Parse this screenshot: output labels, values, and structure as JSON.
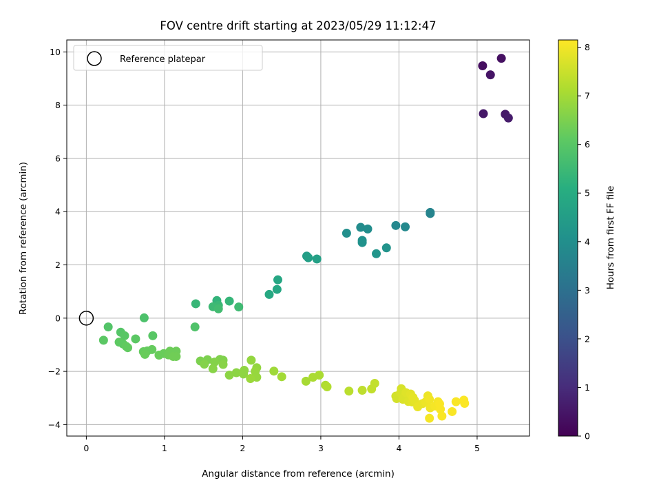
{
  "chart_data": {
    "type": "scatter",
    "title": "FOV centre drift starting at 2023/05/29 11:12:47",
    "xlabel": "Angular distance from reference (arcmin)",
    "ylabel": "Rotation from reference (arcmin)",
    "xlim": [
      -0.25,
      5.67
    ],
    "ylim": [
      -4.43,
      10.45
    ],
    "xticks": [
      0,
      1,
      2,
      3,
      4,
      5
    ],
    "yticks": [
      -4,
      -2,
      0,
      2,
      4,
      6,
      8,
      10
    ],
    "grid": true,
    "legend": {
      "position": "top-left",
      "entries": [
        "Reference platepar"
      ]
    },
    "reference_point": {
      "x": 0,
      "y": 0,
      "label": "Reference platepar"
    },
    "colorbar": {
      "label": "Hours from first FF file",
      "colormap": "viridis",
      "range": [
        0,
        8.15
      ],
      "ticks": [
        0,
        1,
        2,
        3,
        4,
        5,
        6,
        7,
        8
      ]
    },
    "series": [
      {
        "points": [
          {
            "x": 5.07,
            "y": 9.48,
            "h": 0.3
          },
          {
            "x": 5.31,
            "y": 9.76,
            "h": 0.35
          },
          {
            "x": 5.17,
            "y": 9.14,
            "h": 0.45
          },
          {
            "x": 5.08,
            "y": 7.68,
            "h": 0.5
          },
          {
            "x": 5.36,
            "y": 7.66,
            "h": 0.55
          },
          {
            "x": 5.4,
            "y": 7.52,
            "h": 0.6
          },
          {
            "x": 4.4,
            "y": 3.97,
            "h": 3.6
          },
          {
            "x": 4.4,
            "y": 3.93,
            "h": 3.65
          },
          {
            "x": 3.96,
            "y": 3.48,
            "h": 3.75
          },
          {
            "x": 4.08,
            "y": 3.43,
            "h": 3.8
          },
          {
            "x": 3.51,
            "y": 3.41,
            "h": 3.9
          },
          {
            "x": 3.6,
            "y": 3.35,
            "h": 3.95
          },
          {
            "x": 3.33,
            "y": 3.19,
            "h": 4.0
          },
          {
            "x": 3.53,
            "y": 2.92,
            "h": 4.05
          },
          {
            "x": 3.53,
            "y": 2.84,
            "h": 4.1
          },
          {
            "x": 3.84,
            "y": 2.64,
            "h": 4.15
          },
          {
            "x": 3.71,
            "y": 2.42,
            "h": 4.2
          },
          {
            "x": 2.82,
            "y": 2.33,
            "h": 4.5
          },
          {
            "x": 2.84,
            "y": 2.27,
            "h": 4.55
          },
          {
            "x": 2.95,
            "y": 2.22,
            "h": 4.6
          },
          {
            "x": 2.45,
            "y": 1.44,
            "h": 4.8
          },
          {
            "x": 2.44,
            "y": 1.08,
            "h": 4.85
          },
          {
            "x": 2.34,
            "y": 0.89,
            "h": 4.9
          },
          {
            "x": 1.67,
            "y": 0.66,
            "h": 5.3
          },
          {
            "x": 1.83,
            "y": 0.64,
            "h": 5.35
          },
          {
            "x": 1.4,
            "y": 0.54,
            "h": 5.4
          },
          {
            "x": 1.69,
            "y": 0.48,
            "h": 5.45
          },
          {
            "x": 1.62,
            "y": 0.43,
            "h": 5.5
          },
          {
            "x": 1.95,
            "y": 0.42,
            "h": 5.55
          },
          {
            "x": 1.69,
            "y": 0.35,
            "h": 5.6
          },
          {
            "x": 0.74,
            "y": 0.01,
            "h": 5.8
          },
          {
            "x": 1.39,
            "y": -0.33,
            "h": 5.85
          },
          {
            "x": 0.28,
            "y": -0.33,
            "h": 5.9
          },
          {
            "x": 0.44,
            "y": -0.53,
            "h": 5.95
          },
          {
            "x": 0.49,
            "y": -0.66,
            "h": 6.0
          },
          {
            "x": 0.85,
            "y": -0.66,
            "h": 6.0
          },
          {
            "x": 0.63,
            "y": -0.78,
            "h": 6.05
          },
          {
            "x": 0.22,
            "y": -0.83,
            "h": 6.05
          },
          {
            "x": 0.42,
            "y": -0.9,
            "h": 6.1
          },
          {
            "x": 0.47,
            "y": -0.97,
            "h": 6.1
          },
          {
            "x": 0.51,
            "y": -1.06,
            "h": 6.15
          },
          {
            "x": 0.53,
            "y": -1.11,
            "h": 6.15
          },
          {
            "x": 0.84,
            "y": -1.18,
            "h": 6.2
          },
          {
            "x": 0.78,
            "y": -1.23,
            "h": 6.2
          },
          {
            "x": 0.73,
            "y": -1.26,
            "h": 6.2
          },
          {
            "x": 0.75,
            "y": -1.36,
            "h": 6.25
          },
          {
            "x": 0.93,
            "y": -1.39,
            "h": 6.25
          },
          {
            "x": 0.99,
            "y": -1.33,
            "h": 6.25
          },
          {
            "x": 1.07,
            "y": -1.24,
            "h": 6.3
          },
          {
            "x": 1.15,
            "y": -1.24,
            "h": 6.3
          },
          {
            "x": 1.05,
            "y": -1.38,
            "h": 6.3
          },
          {
            "x": 1.11,
            "y": -1.44,
            "h": 6.35
          },
          {
            "x": 1.15,
            "y": -1.44,
            "h": 6.35
          },
          {
            "x": 1.46,
            "y": -1.61,
            "h": 6.5
          },
          {
            "x": 1.55,
            "y": -1.56,
            "h": 6.5
          },
          {
            "x": 1.71,
            "y": -1.55,
            "h": 6.55
          },
          {
            "x": 1.75,
            "y": -1.58,
            "h": 6.55
          },
          {
            "x": 1.51,
            "y": -1.73,
            "h": 6.6
          },
          {
            "x": 1.64,
            "y": -1.65,
            "h": 6.6
          },
          {
            "x": 1.75,
            "y": -1.74,
            "h": 6.65
          },
          {
            "x": 1.62,
            "y": -1.9,
            "h": 6.65
          },
          {
            "x": 1.83,
            "y": -2.14,
            "h": 6.7
          },
          {
            "x": 1.92,
            "y": -2.05,
            "h": 6.7
          },
          {
            "x": 2.02,
            "y": -1.96,
            "h": 6.75
          },
          {
            "x": 2.01,
            "y": -2.1,
            "h": 6.75
          },
          {
            "x": 2.11,
            "y": -1.58,
            "h": 6.8
          },
          {
            "x": 2.18,
            "y": -1.86,
            "h": 6.8
          },
          {
            "x": 2.16,
            "y": -2.0,
            "h": 6.85
          },
          {
            "x": 2.18,
            "y": -2.22,
            "h": 6.85
          },
          {
            "x": 2.1,
            "y": -2.27,
            "h": 6.9
          },
          {
            "x": 2.4,
            "y": -1.99,
            "h": 6.95
          },
          {
            "x": 2.5,
            "y": -2.2,
            "h": 7.0
          },
          {
            "x": 2.81,
            "y": -2.37,
            "h": 7.05
          },
          {
            "x": 2.9,
            "y": -2.22,
            "h": 7.1
          },
          {
            "x": 2.98,
            "y": -2.14,
            "h": 7.1
          },
          {
            "x": 3.06,
            "y": -2.52,
            "h": 7.15
          },
          {
            "x": 3.08,
            "y": -2.58,
            "h": 7.2
          },
          {
            "x": 3.36,
            "y": -2.74,
            "h": 7.3
          },
          {
            "x": 3.53,
            "y": -2.71,
            "h": 7.35
          },
          {
            "x": 3.65,
            "y": -2.66,
            "h": 7.4
          },
          {
            "x": 3.69,
            "y": -2.45,
            "h": 7.4
          },
          {
            "x": 3.96,
            "y": -2.93,
            "h": 7.6
          },
          {
            "x": 3.97,
            "y": -3.02,
            "h": 7.6
          },
          {
            "x": 4.02,
            "y": -2.81,
            "h": 7.65
          },
          {
            "x": 4.03,
            "y": -2.65,
            "h": 7.65
          },
          {
            "x": 4.05,
            "y": -3.05,
            "h": 7.7
          },
          {
            "x": 4.07,
            "y": -2.93,
            "h": 7.7
          },
          {
            "x": 4.09,
            "y": -2.8,
            "h": 7.75
          },
          {
            "x": 4.12,
            "y": -3.13,
            "h": 7.75
          },
          {
            "x": 4.15,
            "y": -2.85,
            "h": 7.8
          },
          {
            "x": 4.17,
            "y": -3.15,
            "h": 7.8
          },
          {
            "x": 4.18,
            "y": -2.98,
            "h": 7.85
          },
          {
            "x": 4.2,
            "y": -3.09,
            "h": 7.85
          },
          {
            "x": 4.24,
            "y": -3.33,
            "h": 7.9
          },
          {
            "x": 4.3,
            "y": -3.21,
            "h": 7.9
          },
          {
            "x": 4.34,
            "y": -3.15,
            "h": 7.95
          },
          {
            "x": 4.37,
            "y": -2.92,
            "h": 7.95
          },
          {
            "x": 4.39,
            "y": -3.05,
            "h": 8.0
          },
          {
            "x": 4.4,
            "y": -3.37,
            "h": 8.0
          },
          {
            "x": 4.39,
            "y": -3.76,
            "h": 8.05
          },
          {
            "x": 4.46,
            "y": -3.3,
            "h": 8.05
          },
          {
            "x": 4.5,
            "y": -3.14,
            "h": 8.05
          },
          {
            "x": 4.52,
            "y": -3.22,
            "h": 8.1
          },
          {
            "x": 4.53,
            "y": -3.42,
            "h": 8.1
          },
          {
            "x": 4.55,
            "y": -3.68,
            "h": 8.1
          },
          {
            "x": 4.68,
            "y": -3.51,
            "h": 8.1
          },
          {
            "x": 4.73,
            "y": -3.14,
            "h": 8.1
          },
          {
            "x": 4.83,
            "y": -3.08,
            "h": 8.12
          },
          {
            "x": 4.84,
            "y": -3.2,
            "h": 8.12
          }
        ]
      }
    ]
  }
}
